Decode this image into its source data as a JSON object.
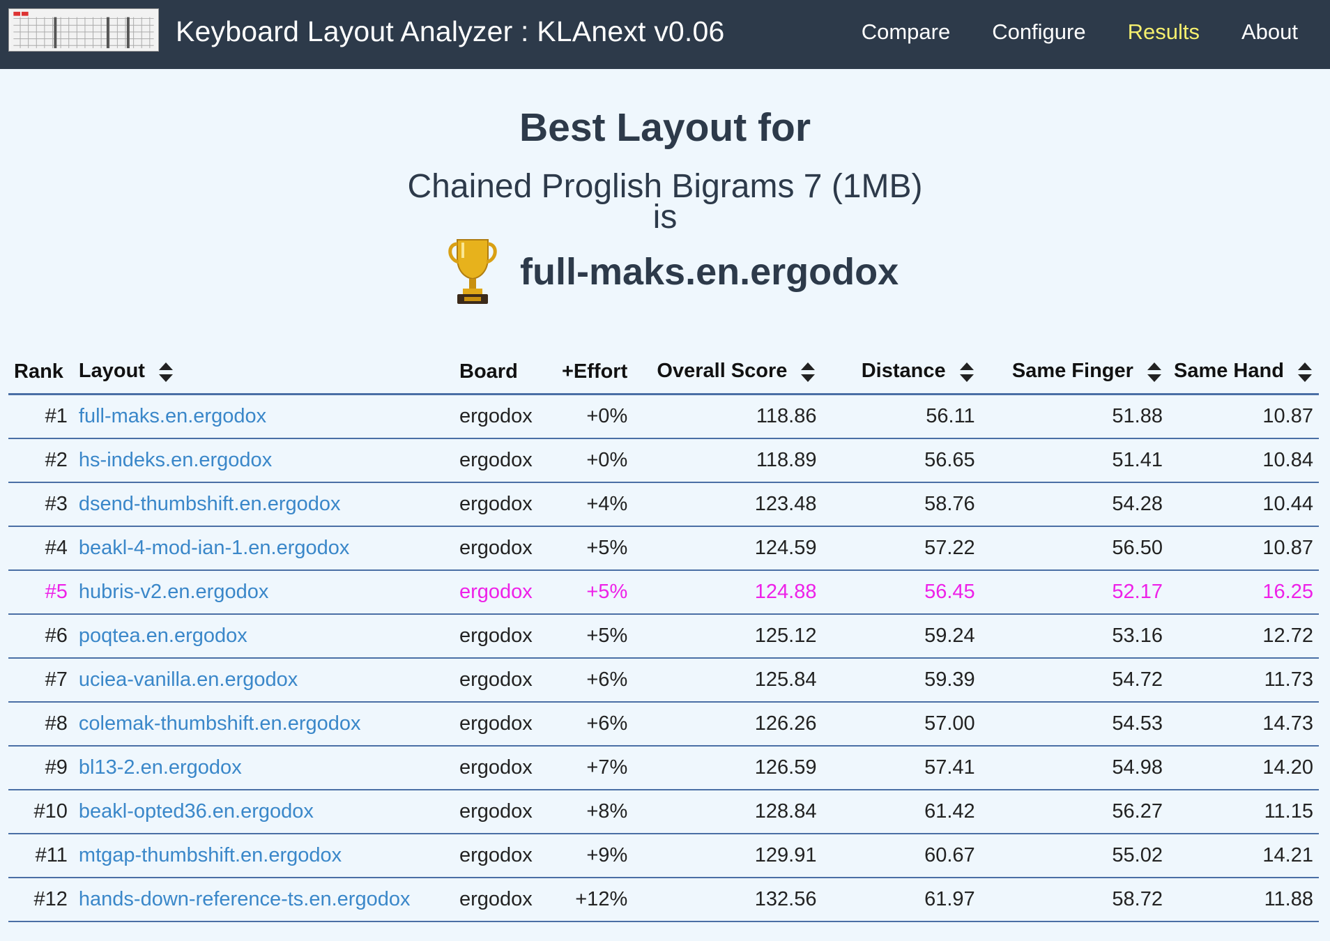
{
  "navbar": {
    "title": "Keyboard Layout Analyzer : KLAnext v0.06",
    "links": [
      {
        "label": "Compare",
        "active": false
      },
      {
        "label": "Configure",
        "active": false
      },
      {
        "label": "Results",
        "active": true
      },
      {
        "label": "About",
        "active": false
      }
    ]
  },
  "hero": {
    "heading": "Best Layout for",
    "corpus": "Chained Proglish Bigrams 7 (1MB)",
    "is_text": "is",
    "winner": "full-maks.en.ergodox",
    "icon": "trophy-icon"
  },
  "colors": {
    "navbar_bg": "#2d3a4a",
    "active_link": "#f5ef6e",
    "link": "#3a87c9",
    "highlight_row": "#ee21e8",
    "page_bg": "#eff7fd"
  },
  "table": {
    "headers": {
      "rank": "Rank",
      "layout": "Layout",
      "board": "Board",
      "effort": "+Effort",
      "overall": "Overall Score",
      "distance": "Distance",
      "same_finger": "Same Finger",
      "same_hand": "Same Hand"
    },
    "rows": [
      {
        "rank": "#1",
        "layout": "full-maks.en.ergodox",
        "board": "ergodox",
        "effort": "+0%",
        "overall": "118.86",
        "distance": "56.11",
        "same_finger": "51.88",
        "same_hand": "10.87"
      },
      {
        "rank": "#2",
        "layout": "hs-indeks.en.ergodox",
        "board": "ergodox",
        "effort": "+0%",
        "overall": "118.89",
        "distance": "56.65",
        "same_finger": "51.41",
        "same_hand": "10.84"
      },
      {
        "rank": "#3",
        "layout": "dsend-thumbshift.en.ergodox",
        "board": "ergodox",
        "effort": "+4%",
        "overall": "123.48",
        "distance": "58.76",
        "same_finger": "54.28",
        "same_hand": "10.44"
      },
      {
        "rank": "#4",
        "layout": "beakl-4-mod-ian-1.en.ergodox",
        "board": "ergodox",
        "effort": "+5%",
        "overall": "124.59",
        "distance": "57.22",
        "same_finger": "56.50",
        "same_hand": "10.87"
      },
      {
        "rank": "#5",
        "layout": "hubris-v2.en.ergodox",
        "board": "ergodox",
        "effort": "+5%",
        "overall": "124.88",
        "distance": "56.45",
        "same_finger": "52.17",
        "same_hand": "16.25",
        "highlight": true
      },
      {
        "rank": "#6",
        "layout": "poqtea.en.ergodox",
        "board": "ergodox",
        "effort": "+5%",
        "overall": "125.12",
        "distance": "59.24",
        "same_finger": "53.16",
        "same_hand": "12.72"
      },
      {
        "rank": "#7",
        "layout": "uciea-vanilla.en.ergodox",
        "board": "ergodox",
        "effort": "+6%",
        "overall": "125.84",
        "distance": "59.39",
        "same_finger": "54.72",
        "same_hand": "11.73"
      },
      {
        "rank": "#8",
        "layout": "colemak-thumbshift.en.ergodox",
        "board": "ergodox",
        "effort": "+6%",
        "overall": "126.26",
        "distance": "57.00",
        "same_finger": "54.53",
        "same_hand": "14.73"
      },
      {
        "rank": "#9",
        "layout": "bl13-2.en.ergodox",
        "board": "ergodox",
        "effort": "+7%",
        "overall": "126.59",
        "distance": "57.41",
        "same_finger": "54.98",
        "same_hand": "14.20"
      },
      {
        "rank": "#10",
        "layout": "beakl-opted36.en.ergodox",
        "board": "ergodox",
        "effort": "+8%",
        "overall": "128.84",
        "distance": "61.42",
        "same_finger": "56.27",
        "same_hand": "11.15"
      },
      {
        "rank": "#11",
        "layout": "mtgap-thumbshift.en.ergodox",
        "board": "ergodox",
        "effort": "+9%",
        "overall": "129.91",
        "distance": "60.67",
        "same_finger": "55.02",
        "same_hand": "14.21"
      },
      {
        "rank": "#12",
        "layout": "hands-down-reference-ts.en.ergodox",
        "board": "ergodox",
        "effort": "+12%",
        "overall": "132.56",
        "distance": "61.97",
        "same_finger": "58.72",
        "same_hand": "11.88"
      }
    ]
  }
}
